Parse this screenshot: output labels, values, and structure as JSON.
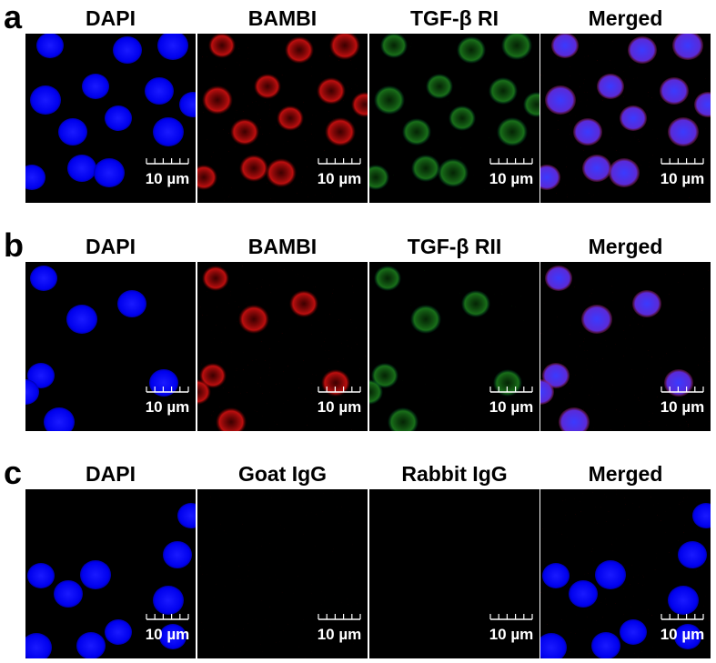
{
  "figure": {
    "rows": [
      {
        "label": "a",
        "columns": [
          "DAPI",
          "BAMBI",
          "TGF-β RI",
          "Merged"
        ]
      },
      {
        "label": "b",
        "columns": [
          "DAPI",
          "BAMBI",
          "TGF-β RII",
          "Merged"
        ]
      },
      {
        "label": "c",
        "columns": [
          "DAPI",
          "Goat IgG",
          "Rabbit IgG",
          "Merged"
        ]
      }
    ],
    "scale_bar": "10 µm"
  }
}
